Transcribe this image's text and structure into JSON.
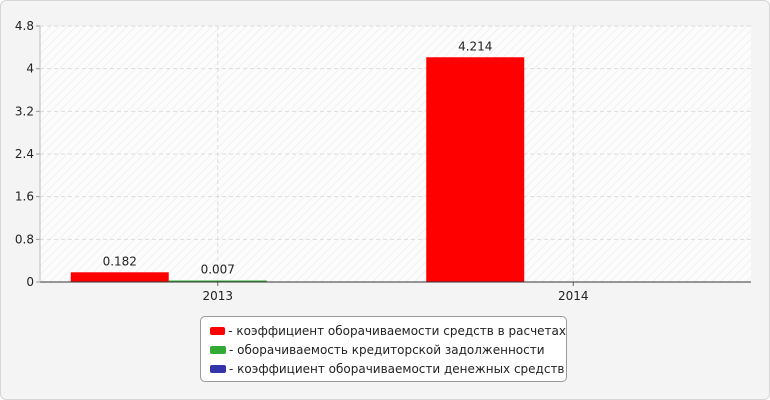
{
  "chart_data": {
    "type": "bar",
    "categories": [
      "2013",
      "2014"
    ],
    "series": [
      {
        "name": "коэффициент оборачиваемости средств в расчетах",
        "color": "#ff0000",
        "values": [
          0.182,
          4.214
        ],
        "labels": [
          "0.182",
          "4.214"
        ]
      },
      {
        "name": "оборачиваемость кредиторской задолженности",
        "color": "#33aa33",
        "values": [
          0.007,
          0
        ],
        "labels": [
          "0.007",
          ""
        ]
      },
      {
        "name": "коэффициент оборачиваемости денежных средств",
        "color": "#3333aa",
        "values": [
          0,
          0
        ],
        "labels": [
          "",
          ""
        ]
      }
    ],
    "ylim": [
      0,
      4.8
    ],
    "yticks": [
      "0",
      "0.8",
      "1.6",
      "2.4",
      "3.2",
      "4",
      "4.8"
    ],
    "grid": true,
    "legend_position": "bottom",
    "legend_prefix": "- ",
    "title": "",
    "xlabel": "",
    "ylabel": ""
  }
}
